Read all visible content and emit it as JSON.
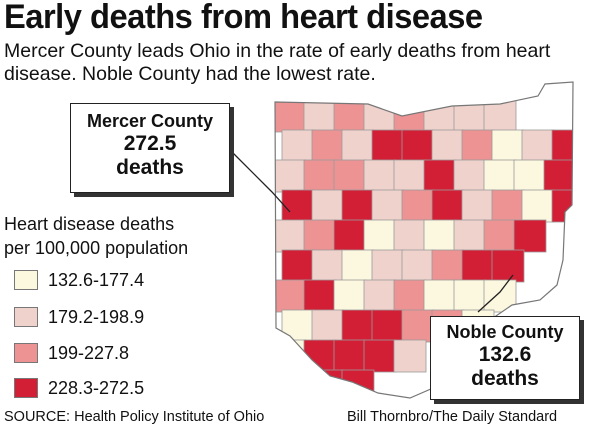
{
  "title": "Early deaths from heart disease",
  "subtitle": "Mercer County leads Ohio in the rate of early deaths from heart disease. Noble County had the lowest rate.",
  "legend": {
    "title_line1": "Heart disease deaths",
    "title_line2": "per 100,000 population",
    "items": [
      {
        "label": "132.6-177.4",
        "color": "#fcf7df"
      },
      {
        "label": "179.2-198.9",
        "color": "#efd2cb"
      },
      {
        "label": "199-227.8",
        "color": "#ee9394"
      },
      {
        "label": "228.3-272.5",
        "color": "#d21f36"
      }
    ]
  },
  "callouts": {
    "mercer": {
      "name": "Mercer County",
      "value": "272.5",
      "unit": "deaths"
    },
    "noble": {
      "name": "Noble County",
      "value": "132.6",
      "unit": "deaths"
    }
  },
  "footer": {
    "source": "SOURCE: Health Policy Institute of Ohio",
    "credit": "Bill Thornbro/The Daily Standard"
  },
  "map": {
    "county_border_color": "#9a9a9a",
    "cells": [
      {
        "n": "r0c0",
        "t": 2
      },
      {
        "n": "r0c1",
        "t": 1
      },
      {
        "n": "r0c2",
        "t": 2
      },
      {
        "n": "r0c3",
        "t": 1
      },
      {
        "n": "r0c4",
        "t": 2
      },
      {
        "n": "r0c5",
        "t": 1
      },
      {
        "n": "r0c6",
        "t": 1
      },
      {
        "n": "r0c7",
        "t": 1
      },
      {
        "n": "r1c0",
        "t": 1
      },
      {
        "n": "r1c1",
        "t": 2
      },
      {
        "n": "r1c2",
        "t": 1
      },
      {
        "n": "r1c3",
        "t": 3
      },
      {
        "n": "r1c4",
        "t": 3
      },
      {
        "n": "r1c5",
        "t": 1
      },
      {
        "n": "r1c6",
        "t": 2
      },
      {
        "n": "r1c7",
        "t": 0
      },
      {
        "n": "r1c8",
        "t": 1
      },
      {
        "n": "r1c9",
        "t": 3
      },
      {
        "n": "r2c0",
        "t": 1
      },
      {
        "n": "r2c1",
        "t": 2
      },
      {
        "n": "r2c2",
        "t": 2
      },
      {
        "n": "r2c3",
        "t": 1
      },
      {
        "n": "r2c4",
        "t": 1
      },
      {
        "n": "r2c5",
        "t": 3
      },
      {
        "n": "r2c6",
        "t": 1
      },
      {
        "n": "r2c7",
        "t": 0
      },
      {
        "n": "r2c8",
        "t": 0
      },
      {
        "n": "r2c9",
        "t": 3
      },
      {
        "n": "r3c0",
        "t": 3
      },
      {
        "n": "r3c1",
        "t": 1
      },
      {
        "n": "r3c2",
        "t": 3
      },
      {
        "n": "r3c3",
        "t": 1
      },
      {
        "n": "r3c4",
        "t": 2
      },
      {
        "n": "r3c5",
        "t": 3
      },
      {
        "n": "r3c6",
        "t": 1
      },
      {
        "n": "r3c7",
        "t": 2
      },
      {
        "n": "r3c8",
        "t": 0
      },
      {
        "n": "r3c9",
        "t": 3
      },
      {
        "n": "r4c0",
        "t": 1
      },
      {
        "n": "r4c1",
        "t": 2
      },
      {
        "n": "r4c2",
        "t": 3
      },
      {
        "n": "r4c3",
        "t": 0
      },
      {
        "n": "r4c4",
        "t": 1
      },
      {
        "n": "r4c5",
        "t": 0
      },
      {
        "n": "r4c6",
        "t": 1
      },
      {
        "n": "r4c7",
        "t": 2
      },
      {
        "n": "r4c8",
        "t": 3
      },
      {
        "n": "r5c0",
        "t": 3
      },
      {
        "n": "r5c1",
        "t": 1
      },
      {
        "n": "r5c2",
        "t": 0
      },
      {
        "n": "r5c3",
        "t": 1
      },
      {
        "n": "r5c4",
        "t": 1
      },
      {
        "n": "r5c5",
        "t": 2
      },
      {
        "n": "r5c6",
        "t": 3
      },
      {
        "n": "r5c7",
        "t": 3
      },
      {
        "n": "r6c0",
        "t": 2
      },
      {
        "n": "r6c1",
        "t": 3
      },
      {
        "n": "r6c2",
        "t": 0
      },
      {
        "n": "r6c3",
        "t": 1
      },
      {
        "n": "r6c4",
        "t": 2
      },
      {
        "n": "r6c5",
        "t": 0
      },
      {
        "n": "r6c6",
        "t": 0
      },
      {
        "n": "r6c7",
        "t": 0
      },
      {
        "n": "r7c0",
        "t": 0
      },
      {
        "n": "r7c1",
        "t": 1
      },
      {
        "n": "r7c2",
        "t": 3
      },
      {
        "n": "r7c3",
        "t": 3
      },
      {
        "n": "r7c4",
        "t": 2
      },
      {
        "n": "r7c5",
        "t": 2
      },
      {
        "n": "r7c6",
        "t": 0
      },
      {
        "n": "r8c0",
        "t": 0
      },
      {
        "n": "r8c1",
        "t": 3
      },
      {
        "n": "r8c2",
        "t": 3
      },
      {
        "n": "r8c3",
        "t": 3
      },
      {
        "n": "r8c4",
        "t": 1
      },
      {
        "n": "r9c0",
        "t": 3
      },
      {
        "n": "r9c1",
        "t": 3
      },
      {
        "n": "r9c2",
        "t": 3
      }
    ]
  }
}
